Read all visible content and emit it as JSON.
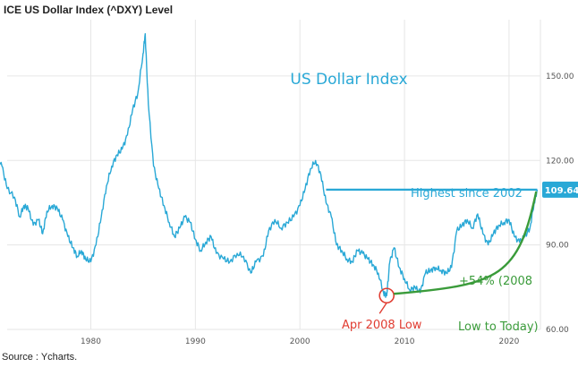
{
  "title": "ICE US Dollar Index (^DXY) Level",
  "source": "Source : Ycharts.",
  "colors": {
    "line": "#29a8d6",
    "highlight": "#29a8d6",
    "green": "#3a9b3a",
    "red": "#e03c31",
    "grid": "#e6e6e6"
  },
  "chart_data": {
    "type": "line",
    "title": "US Dollar Index",
    "xlabel": "",
    "ylabel": "",
    "xlim": [
      1972,
      2023
    ],
    "ylim": [
      60,
      170
    ],
    "x_ticks": [
      1980,
      1990,
      2000,
      2010,
      2020
    ],
    "y_ticks": [
      60,
      90,
      120,
      150
    ],
    "y_tick_labels": [
      "60.00",
      "90.00",
      "120.00",
      "150.00"
    ],
    "grid": true,
    "series": [
      {
        "x": [
          1971.0,
          1971.5,
          1972.0,
          1972.7,
          1973.2,
          1973.6,
          1974.0,
          1974.5,
          1975.0,
          1975.4,
          1975.8,
          1976.3,
          1976.8,
          1977.3,
          1977.8,
          1978.3,
          1978.7,
          1979.1,
          1979.5,
          1980.0,
          1980.5,
          1981.0,
          1981.5,
          1982.0,
          1982.5,
          1983.0,
          1983.5,
          1984.0,
          1984.5,
          1985.0,
          1985.2,
          1985.5,
          1986.0,
          1986.5,
          1987.0,
          1987.5,
          1988.0,
          1988.5,
          1989.0,
          1989.5,
          1990.0,
          1990.5,
          1991.0,
          1991.5,
          1992.0,
          1992.7,
          1993.3,
          1994.0,
          1994.6,
          1995.3,
          1995.8,
          1996.5,
          1997.0,
          1997.6,
          1998.2,
          1998.8,
          1999.4,
          2000.0,
          2000.5,
          2001.0,
          2001.5,
          2002.0,
          2002.5,
          2003.0,
          2003.5,
          2004.0,
          2004.5,
          2005.0,
          2005.5,
          2006.0,
          2006.5,
          2007.0,
          2007.5,
          2008.0,
          2008.3,
          2008.6,
          2009.0,
          2009.5,
          2010.0,
          2010.5,
          2011.0,
          2011.5,
          2012.0,
          2012.5,
          2013.0,
          2013.5,
          2014.0,
          2014.5,
          2015.0,
          2015.5,
          2016.0,
          2016.5,
          2017.0,
          2017.5,
          2018.0,
          2018.5,
          2019.0,
          2019.5,
          2020.0,
          2020.5,
          2021.0,
          2021.5,
          2022.0,
          2022.4,
          2022.7
        ],
        "values": [
          120.5,
          118,
          110,
          107,
          100,
          104,
          103,
          97,
          99,
          94,
          102,
          104,
          103,
          99,
          93,
          89,
          86,
          88,
          85,
          84,
          90,
          100,
          111,
          118,
          122,
          124,
          129,
          138,
          144,
          158,
          165,
          140,
          118,
          110,
          104,
          98,
          93,
          96,
          100,
          98,
          92,
          88,
          91,
          93,
          87,
          85,
          84,
          87,
          86,
          80,
          84,
          86,
          95,
          99,
          96,
          98,
          100,
          104,
          110,
          117,
          120,
          115,
          105,
          100,
          90,
          88,
          85,
          84,
          88,
          87,
          85,
          83,
          80,
          73,
          72,
          84,
          89,
          82,
          78,
          74,
          75,
          73,
          80,
          81,
          82,
          81,
          80,
          82,
          95,
          97,
          99,
          96,
          101,
          94,
          90,
          94,
          97,
          98,
          99,
          93,
          91,
          93,
          96,
          105,
          109.64
        ]
      }
    ],
    "reference_line": {
      "value": 109.64,
      "label": "109.64"
    },
    "annotations": {
      "highest": "Highest since 2002",
      "low": "Apr 2008 Low",
      "gain_line1": "+54% (2008",
      "gain_line2": "Low to Today)",
      "low_point": {
        "x": 2008.3,
        "y": 72
      }
    }
  }
}
